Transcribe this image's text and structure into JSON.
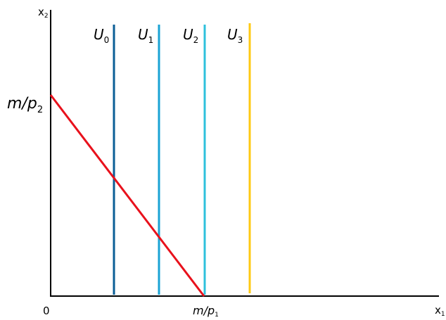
{
  "diagram": {
    "axes": {
      "x_label": "x",
      "x_label_sub": "1",
      "y_label": "x",
      "y_label_sub": "2",
      "origin_label": "0"
    },
    "budget_line": {
      "y_intercept_label": {
        "main": "m/p",
        "sub": "2"
      },
      "x_intercept_label": {
        "main": "m/p",
        "sub": "1"
      },
      "color": "#e8111c"
    },
    "indifference_curves": [
      {
        "name": "U",
        "sub": "0",
        "color": "#0b5e96"
      },
      {
        "name": "U",
        "sub": "1",
        "color": "#1aa3d4"
      },
      {
        "name": "U",
        "sub": "2",
        "color": "#2ec0dc"
      },
      {
        "name": "U",
        "sub": "3",
        "color": "#ffc913"
      }
    ],
    "axis_color": "#000000"
  }
}
